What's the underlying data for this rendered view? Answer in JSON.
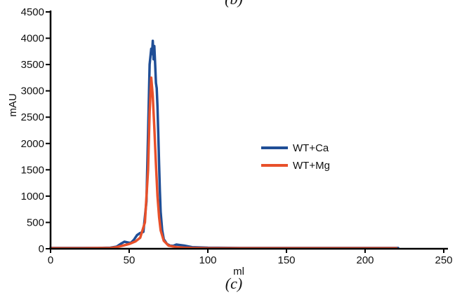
{
  "chart_data": {
    "type": "line",
    "title": "",
    "xlabel": "ml",
    "ylabel": "mAU",
    "xlim": [
      0,
      250
    ],
    "ylim": [
      0,
      4500
    ],
    "xticks": [
      0,
      50,
      100,
      150,
      200,
      250
    ],
    "yticks": [
      0,
      500,
      1000,
      1500,
      2000,
      2500,
      3000,
      3500,
      4000,
      4500
    ],
    "grid": false,
    "legend_position": "center-right",
    "panel_labels": {
      "top": "(b)",
      "bottom": "(c)"
    },
    "series": [
      {
        "name": "WT+Ca",
        "color": "#1f4e96",
        "x": [
          0,
          10,
          20,
          30,
          38,
          42,
          45,
          47,
          49,
          51,
          53,
          55,
          57,
          59,
          61,
          62,
          63,
          64,
          64.5,
          65,
          65.5,
          66,
          66.5,
          67,
          67.5,
          68,
          68.5,
          69,
          69.5,
          70,
          71,
          72,
          74,
          76,
          78,
          80,
          85,
          90,
          100,
          120,
          150,
          180,
          200,
          221
        ],
        "y": [
          15,
          15,
          15,
          15,
          20,
          40,
          100,
          135,
          120,
          110,
          170,
          260,
          300,
          320,
          900,
          2200,
          3500,
          3800,
          3700,
          3950,
          3600,
          3850,
          3500,
          3150,
          3050,
          2700,
          2200,
          1600,
          1100,
          700,
          350,
          180,
          90,
          60,
          55,
          80,
          60,
          30,
          20,
          15,
          15,
          15,
          15,
          15
        ]
      },
      {
        "name": "WT+Mg",
        "color": "#e8502a",
        "x": [
          0,
          20,
          38,
          42,
          46,
          50,
          54,
          57,
          60,
          62,
          63,
          64,
          65,
          66,
          67,
          68,
          69,
          70,
          72,
          75,
          80,
          85,
          90,
          100,
          130,
          160,
          200,
          220
        ],
        "y": [
          10,
          10,
          15,
          30,
          60,
          90,
          140,
          210,
          500,
          1500,
          2600,
          3250,
          2900,
          2300,
          1600,
          1000,
          600,
          350,
          150,
          60,
          30,
          20,
          15,
          10,
          10,
          10,
          10,
          10
        ]
      }
    ]
  }
}
